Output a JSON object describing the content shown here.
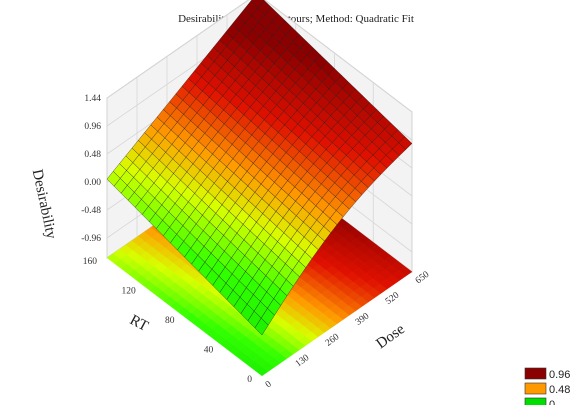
{
  "chart_data": {
    "type": "surface3d",
    "title": "Desirability Surface/Contours; Method: Quadratic Fit",
    "zlabel": "Desirability",
    "xlabel": "Dose",
    "ylabel": "RT",
    "x_ticks": [
      "0",
      "130",
      "260",
      "390",
      "520",
      "650"
    ],
    "y_ticks": [
      "0",
      "40",
      "80",
      "120",
      "160"
    ],
    "z_ticks": [
      "1.44",
      "0.96",
      "0.48",
      "0.00",
      "-0.48",
      "-0.96"
    ],
    "xlim": [
      0,
      650
    ],
    "ylim": [
      0,
      160
    ],
    "zlim": [
      -1.3,
      1.44
    ],
    "grid_resolution": [
      24,
      22
    ],
    "surface_samples": {
      "dose": [
        0,
        650
      ],
      "rt": [
        0,
        160
      ],
      "desirability": [
        [
          -0.6,
          0.9
        ],
        [
          0.05,
          1.45
        ]
      ]
    },
    "colors": {
      "high": "#8b0000",
      "mid": "#ff9900",
      "low": "#00dd00",
      "wall": "#f3f3f3",
      "gridline": "#d6d6d6",
      "mesh": "#1a1a1a"
    },
    "legend": [
      {
        "label": "0.96",
        "color": "#8b0000"
      },
      {
        "label": "0.48",
        "color": "#ff9900"
      },
      {
        "label": "0",
        "color": "#00dd00"
      }
    ],
    "legend_position": "bottom-right"
  }
}
